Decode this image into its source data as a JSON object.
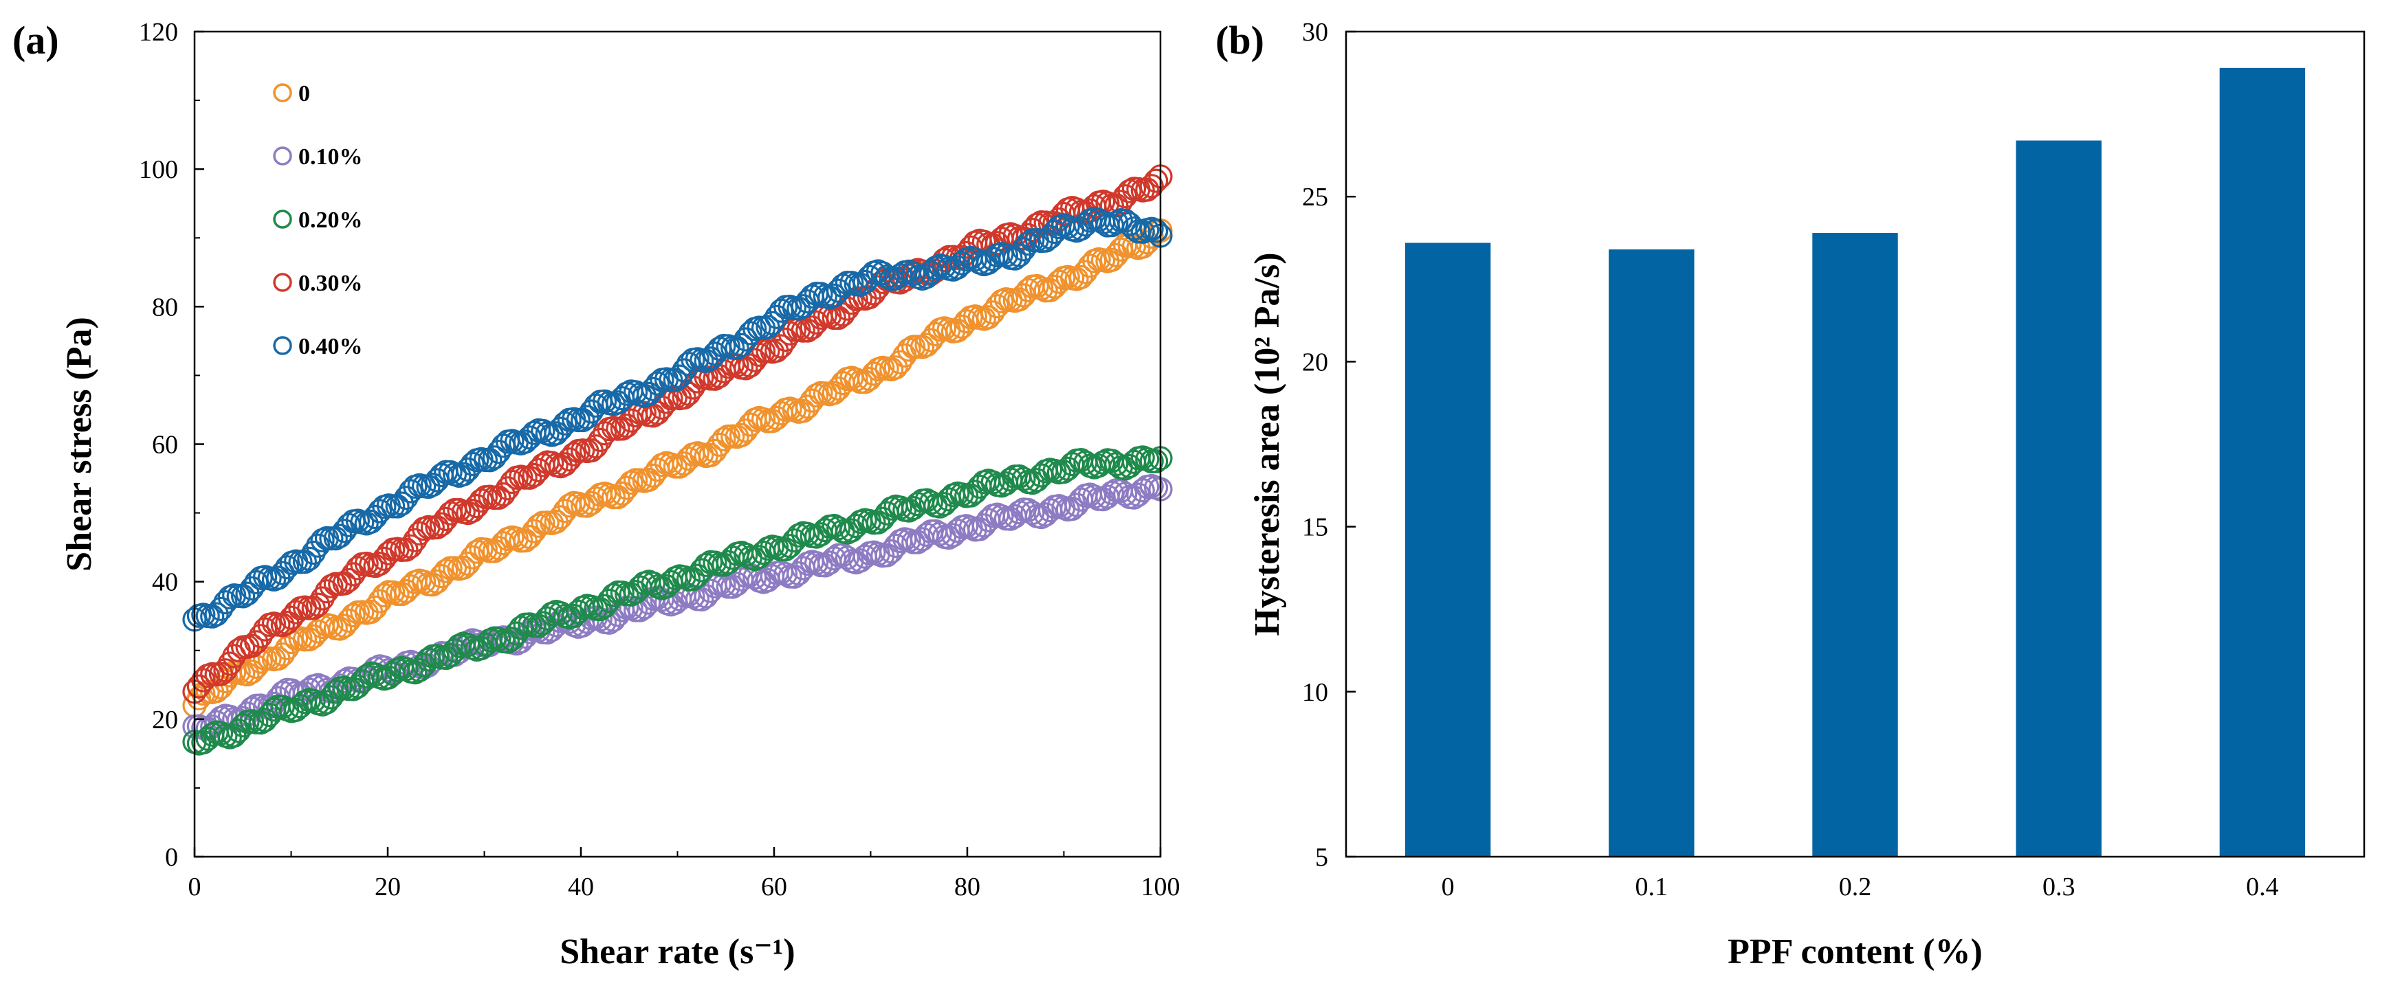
{
  "chart_data": [
    {
      "type": "scatter",
      "panel_label": "(a)",
      "xlabel": "Shear rate (s⁻¹)",
      "ylabel": "Shear stress (Pa)",
      "xlim": [
        0,
        100
      ],
      "ylim": [
        0,
        120
      ],
      "xticks": [
        "0",
        "20",
        "40",
        "60",
        "80",
        "100"
      ],
      "yticks": [
        "0",
        "20",
        "40",
        "60",
        "80",
        "100",
        "120"
      ],
      "grid": false,
      "legend_position": "top-left",
      "marker": "open-circle",
      "series": [
        {
          "name": "0",
          "color": "#F0922E",
          "anchors": [
            [
              0,
              22
            ],
            [
              5,
              27
            ],
            [
              10,
              30.5
            ],
            [
              20,
              37.5
            ],
            [
              30,
              44
            ],
            [
              40,
              51
            ],
            [
              50,
              57
            ],
            [
              60,
              64
            ],
            [
              70,
              70
            ],
            [
              80,
              78
            ],
            [
              90,
              84
            ],
            [
              95,
              87
            ],
            [
              100,
              91
            ]
          ]
        },
        {
          "name": "0.10%",
          "color": "#8E7CC3",
          "anchors": [
            [
              0,
              18
            ],
            [
              5,
              21
            ],
            [
              10,
              23.5
            ],
            [
              20,
              27
            ],
            [
              30,
              31
            ],
            [
              40,
              34
            ],
            [
              50,
              37.5
            ],
            [
              60,
              41
            ],
            [
              70,
              44
            ],
            [
              80,
              48
            ],
            [
              90,
              51
            ],
            [
              100,
              54
            ]
          ]
        },
        {
          "name": "0.20%",
          "color": "#1F8A4C",
          "anchors": [
            [
              0,
              16.5
            ],
            [
              5,
              19
            ],
            [
              10,
              21.5
            ],
            [
              20,
              26.5
            ],
            [
              30,
              31
            ],
            [
              40,
              36
            ],
            [
              50,
              40.5
            ],
            [
              60,
              45
            ],
            [
              70,
              49
            ],
            [
              80,
              53
            ],
            [
              90,
              56.5
            ],
            [
              100,
              58
            ]
          ]
        },
        {
          "name": "0.30%",
          "color": "#D0392B",
          "anchors": [
            [
              0,
              24.5
            ],
            [
              5,
              30
            ],
            [
              10,
              35
            ],
            [
              20,
              44
            ],
            [
              30,
              52
            ],
            [
              40,
              59
            ],
            [
              50,
              67
            ],
            [
              60,
              74
            ],
            [
              70,
              82
            ],
            [
              80,
              88
            ],
            [
              90,
              93
            ],
            [
              100,
              98
            ]
          ]
        },
        {
          "name": "0.40%",
          "color": "#1769A7",
          "anchors": [
            [
              0,
              34.5
            ],
            [
              5,
              38
            ],
            [
              10,
              42.5
            ],
            [
              20,
              51
            ],
            [
              30,
              58
            ],
            [
              40,
              64
            ],
            [
              50,
              70
            ],
            [
              60,
              78
            ],
            [
              65,
              82
            ],
            [
              70,
              84
            ],
            [
              80,
              86
            ],
            [
              85,
              88
            ],
            [
              90,
              91
            ],
            [
              94,
              93
            ],
            [
              100,
              90
            ]
          ]
        }
      ]
    },
    {
      "type": "bar",
      "panel_label": "(b)",
      "xlabel": "PPF content (%)",
      "ylabel": "Hysteresis area (10² Pa/s)",
      "categories": [
        "0",
        "0.1",
        "0.2",
        "0.3",
        "0.4"
      ],
      "values": [
        23.6,
        23.4,
        23.9,
        26.7,
        28.9
      ],
      "ylim": [
        5,
        30
      ],
      "yticks": [
        "5",
        "10",
        "15",
        "20",
        "25",
        "30"
      ],
      "color": "#0364A3",
      "grid": false
    }
  ]
}
